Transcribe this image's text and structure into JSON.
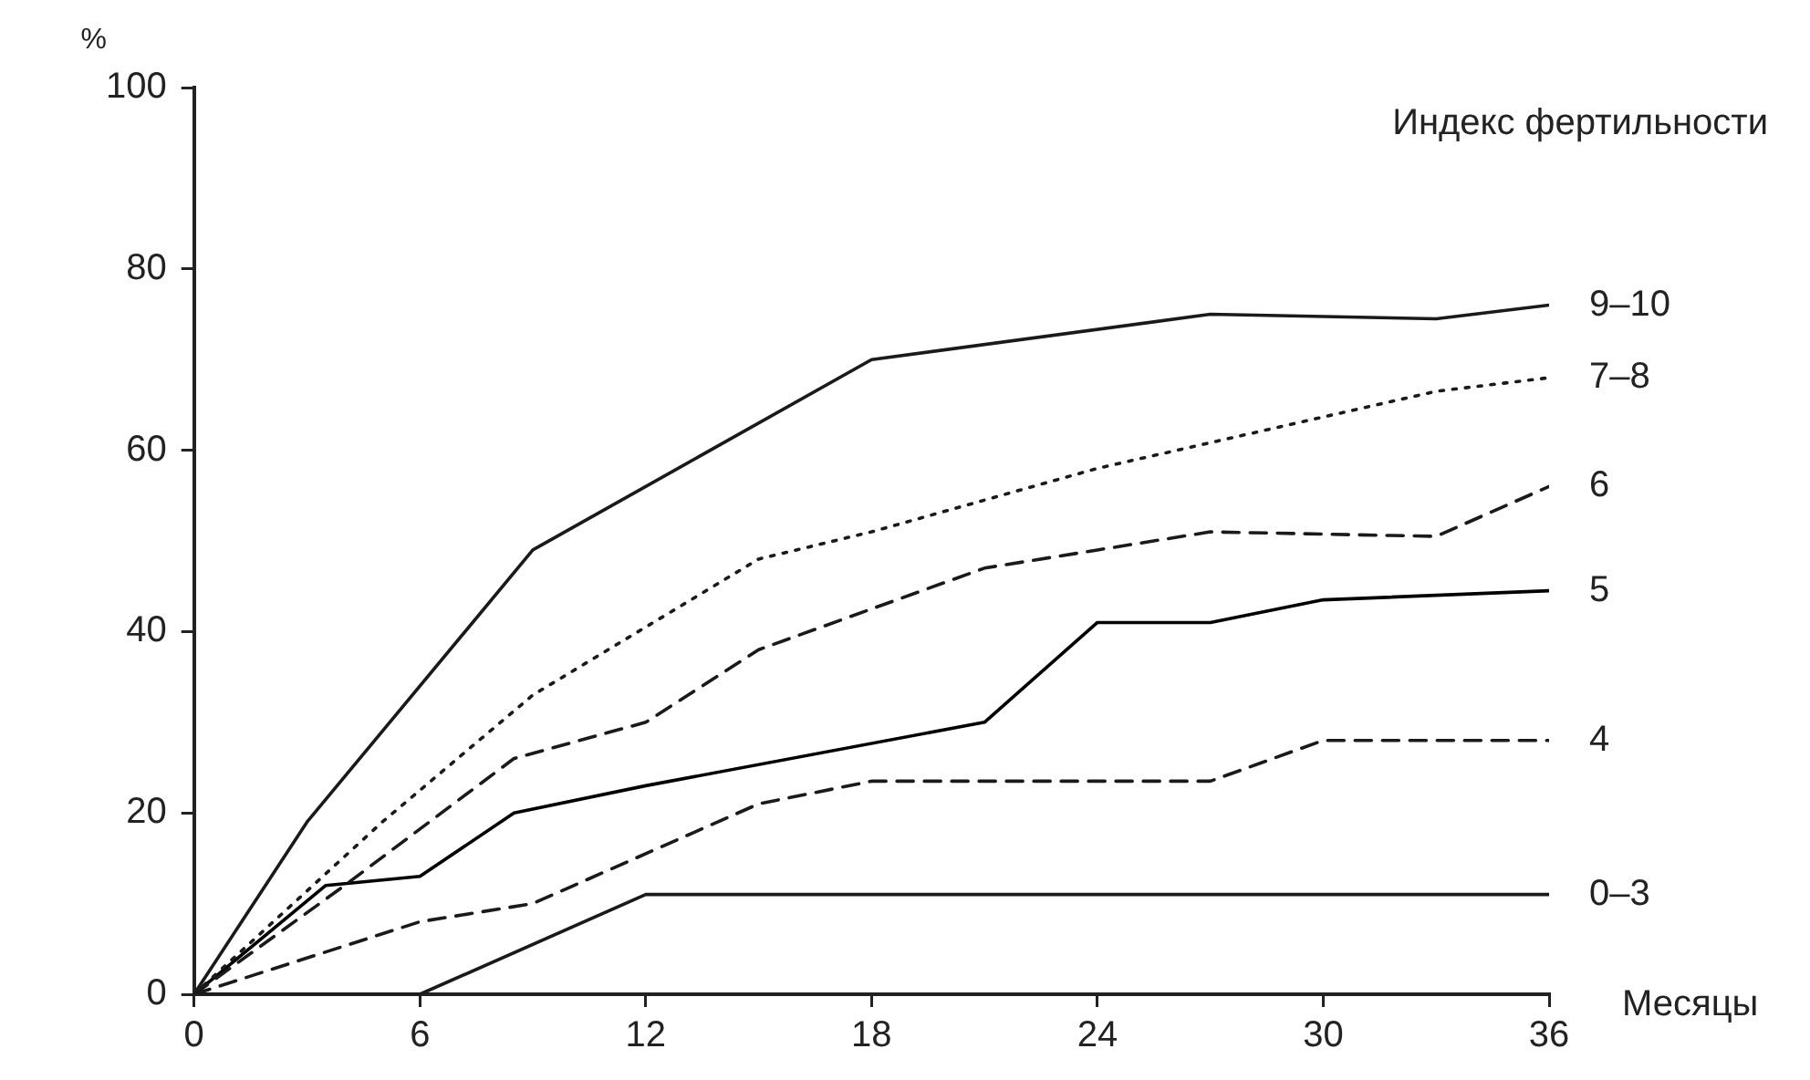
{
  "chart_data": {
    "type": "line",
    "xlabel": "Месяцы",
    "ylabel": "%",
    "annotations": [
      "Индекс фертильности"
    ],
    "xlim": [
      0,
      36
    ],
    "xticks": [
      0,
      6,
      12,
      18,
      24,
      30,
      36
    ],
    "ylim": [
      0,
      100
    ],
    "yticks": [
      0,
      20,
      40,
      60,
      80,
      100
    ],
    "grid": false,
    "legend": false,
    "marker": "none",
    "series": [
      {
        "name": "9–10",
        "color": "#1a1a1a",
        "line_style": "solid",
        "x": [
          0,
          3,
          9,
          18,
          27,
          33,
          36
        ],
        "values": [
          0,
          19,
          49,
          70,
          75,
          74.5,
          76
        ]
      },
      {
        "name": "7–8",
        "color": "#1a1a1a",
        "line_style": "dotted",
        "x": [
          0,
          5,
          9,
          15,
          18,
          24,
          33,
          36
        ],
        "values": [
          0,
          19,
          33,
          48,
          51,
          58,
          66.5,
          68
        ]
      },
      {
        "name": "6",
        "color": "#1a1a1a",
        "line_style": "dashed",
        "x": [
          0,
          4,
          8.5,
          12,
          15,
          21,
          24,
          27,
          33,
          36
        ],
        "values": [
          0,
          12,
          26,
          30,
          38,
          47,
          49,
          51,
          50.5,
          56
        ]
      },
      {
        "name": "5",
        "color": "#000000",
        "line_style": "solid",
        "x": [
          0,
          3.5,
          6,
          8.5,
          12,
          21,
          24,
          27,
          30,
          36
        ],
        "values": [
          0,
          12,
          13,
          20,
          23,
          30,
          41,
          41,
          43.5,
          44.5
        ]
      },
      {
        "name": "4",
        "color": "#1a1a1a",
        "line_style": "dashed",
        "x": [
          0,
          6,
          9,
          15,
          18,
          27,
          30,
          36
        ],
        "values": [
          0,
          8,
          10,
          21,
          23.5,
          23.5,
          28,
          28
        ]
      },
      {
        "name": "0–3",
        "color": "#1a1a1a",
        "line_style": "solid",
        "x": [
          0,
          6,
          12,
          36
        ],
        "values": [
          0,
          0,
          11,
          11
        ]
      }
    ]
  }
}
